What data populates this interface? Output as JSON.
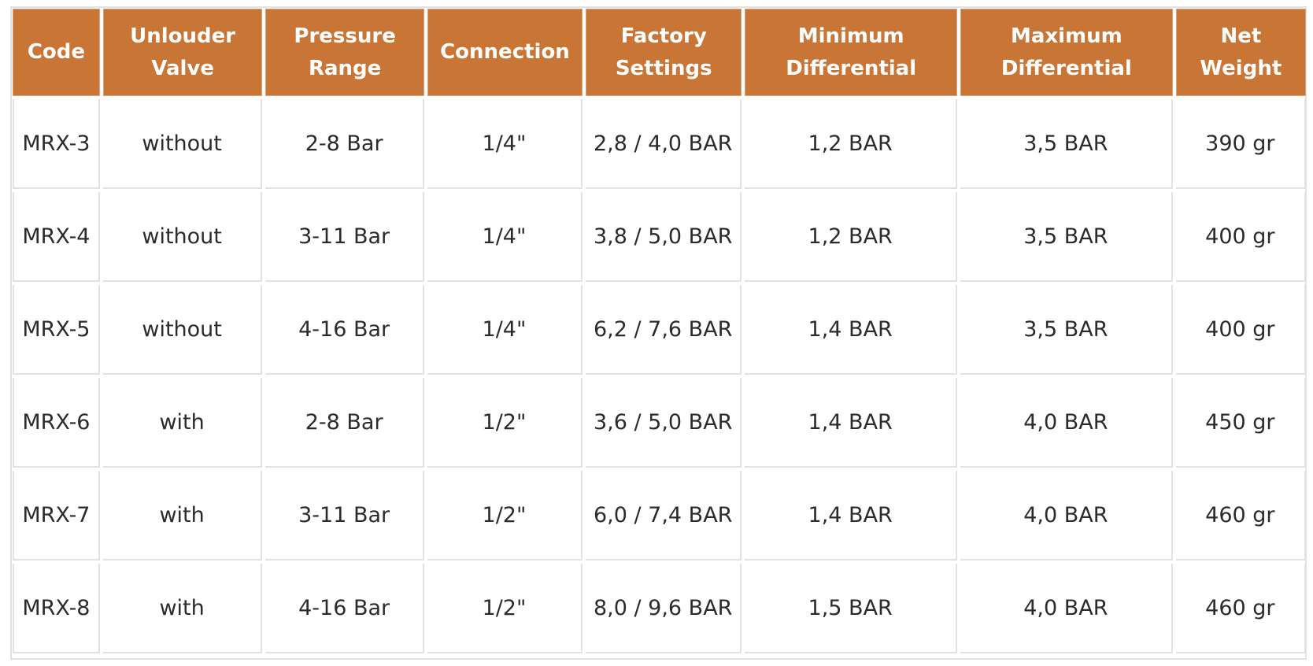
{
  "table": {
    "headers": [
      "Code",
      "Unlouder Valve",
      "Pressure Range",
      "Connection",
      "Factory Settings",
      "Minimum Differential",
      "Maximum Differential",
      "Net Weight"
    ],
    "rows": [
      [
        "MRX-3",
        "without",
        "2-8 Bar",
        "1/4\"",
        "2,8 / 4,0 BAR",
        "1,2 BAR",
        "3,5 BAR",
        "390 gr"
      ],
      [
        "MRX-4",
        "without",
        "3-11 Bar",
        "1/4\"",
        "3,8 / 5,0 BAR",
        "1,2 BAR",
        "3,5 BAR",
        "400 gr"
      ],
      [
        "MRX-5",
        "without",
        "4-16 Bar",
        "1/4\"",
        "6,2 / 7,6 BAR",
        "1,4 BAR",
        "3,5 BAR",
        "400 gr"
      ],
      [
        "MRX-6",
        "with",
        "2-8 Bar",
        "1/2\"",
        "3,6 / 5,0 BAR",
        "1,4 BAR",
        "4,0 BAR",
        "450 gr"
      ],
      [
        "MRX-7",
        "with",
        "3-11 Bar",
        "1/2\"",
        "6,0 / 7,4 BAR",
        "1,4 BAR",
        "4,0 BAR",
        "460 gr"
      ],
      [
        "MRX-8",
        "with",
        "4-16 Bar",
        "1/2\"",
        "8,0 / 9,6 BAR",
        "1,5 BAR",
        "4,0 BAR",
        "460 gr"
      ]
    ]
  },
  "colors": {
    "header_background": "#c97535",
    "header_text": "#ffffff",
    "cell_text": "#2b2b2b",
    "border": "#e2e2e2"
  }
}
